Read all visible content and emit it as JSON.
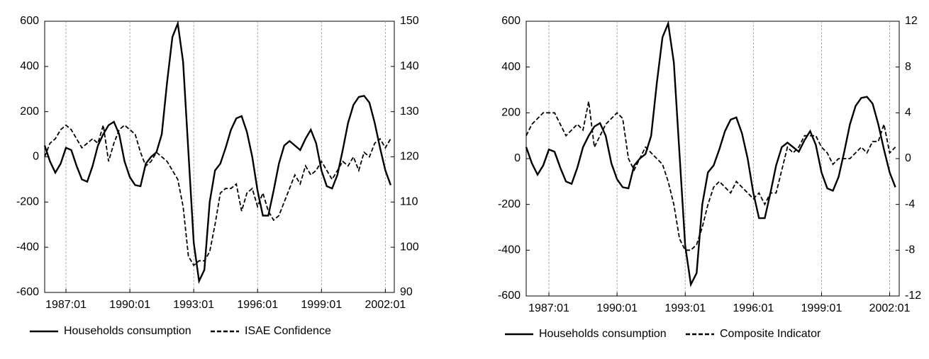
{
  "chart_data": [
    {
      "type": "line",
      "grid": "x",
      "x": [
        1986,
        1986.25,
        1986.5,
        1986.75,
        1987,
        1987.25,
        1987.5,
        1987.75,
        1988,
        1988.25,
        1988.5,
        1988.75,
        1989,
        1989.25,
        1989.5,
        1989.75,
        1990,
        1990.25,
        1990.5,
        1990.75,
        1991,
        1991.25,
        1991.5,
        1991.75,
        1992,
        1992.25,
        1992.5,
        1992.75,
        1993,
        1993.25,
        1993.5,
        1993.75,
        1994,
        1994.25,
        1994.5,
        1994.75,
        1995,
        1995.25,
        1995.5,
        1995.75,
        1996,
        1996.25,
        1996.5,
        1996.75,
        1997,
        1997.25,
        1997.5,
        1997.75,
        1998,
        1998.25,
        1998.5,
        1998.75,
        1999,
        1999.25,
        1999.5,
        1999.75,
        2000,
        2000.25,
        2000.5,
        2000.75,
        2001,
        2001.25,
        2001.5,
        2001.75,
        2002,
        2002.25
      ],
      "xlim": [
        1986,
        2002.42
      ],
      "xticks": [
        {
          "value": 1987,
          "label": "1987:01"
        },
        {
          "value": 1990,
          "label": "1990:01"
        },
        {
          "value": 1993,
          "label": "1993:01"
        },
        {
          "value": 1996,
          "label": "1996:01"
        },
        {
          "value": 1999,
          "label": "1999:01"
        },
        {
          "value": 2002,
          "label": "2002:01"
        }
      ],
      "ylim": [
        -600,
        600
      ],
      "yticks": [
        -600,
        -400,
        -200,
        0,
        200,
        400,
        600
      ],
      "y2lim": [
        90,
        150
      ],
      "y2ticks": [
        90,
        100,
        110,
        120,
        130,
        140,
        150
      ],
      "series": [
        {
          "name": "Households consumption",
          "color": "#000000",
          "dash": false,
          "values": [
            50,
            -20,
            -70,
            -30,
            40,
            30,
            -40,
            -100,
            -110,
            -40,
            50,
            100,
            140,
            155,
            100,
            -20,
            -90,
            -125,
            -130,
            -30,
            0,
            20,
            100,
            330,
            530,
            590,
            420,
            20,
            -380,
            -550,
            -500,
            -200,
            -60,
            -30,
            40,
            120,
            170,
            180,
            110,
            0,
            -150,
            -260,
            -260,
            -150,
            -30,
            50,
            70,
            50,
            30,
            80,
            120,
            60,
            -60,
            -130,
            -140,
            -80,
            30,
            150,
            230,
            265,
            270,
            240,
            150,
            40,
            -60,
            -125
          ]
        },
        {
          "name": "ISAE Confidence",
          "color": "#000000",
          "dash": true,
          "axis": "y2",
          "values": [
            120,
            123,
            124,
            126,
            127,
            126,
            124,
            122,
            123,
            124,
            123,
            127,
            119,
            123,
            126,
            127,
            126,
            125,
            121,
            118,
            119,
            121,
            120,
            119,
            117,
            115,
            109,
            98,
            96,
            97,
            97,
            99,
            105,
            112,
            113,
            113,
            114,
            108,
            112,
            113,
            109,
            112,
            108,
            106,
            107,
            110,
            113,
            116,
            114,
            118,
            116,
            117,
            119,
            117,
            115,
            117,
            119,
            118,
            120,
            117,
            121,
            120,
            123,
            124,
            122,
            124
          ]
        }
      ]
    },
    {
      "type": "line",
      "grid": "x",
      "x": [
        1986,
        1986.25,
        1986.5,
        1986.75,
        1987,
        1987.25,
        1987.5,
        1987.75,
        1988,
        1988.25,
        1988.5,
        1988.75,
        1989,
        1989.25,
        1989.5,
        1989.75,
        1990,
        1990.25,
        1990.5,
        1990.75,
        1991,
        1991.25,
        1991.5,
        1991.75,
        1992,
        1992.25,
        1992.5,
        1992.75,
        1993,
        1993.25,
        1993.5,
        1993.75,
        1994,
        1994.25,
        1994.5,
        1994.75,
        1995,
        1995.25,
        1995.5,
        1995.75,
        1996,
        1996.25,
        1996.5,
        1996.75,
        1997,
        1997.25,
        1997.5,
        1997.75,
        1998,
        1998.25,
        1998.5,
        1998.75,
        1999,
        1999.25,
        1999.5,
        1999.75,
        2000,
        2000.25,
        2000.5,
        2000.75,
        2001,
        2001.25,
        2001.5,
        2001.75,
        2002,
        2002.25
      ],
      "xlim": [
        1986,
        2002.42
      ],
      "xticks": [
        {
          "value": 1987,
          "label": "1987:01"
        },
        {
          "value": 1990,
          "label": "1990:01"
        },
        {
          "value": 1993,
          "label": "1993:01"
        },
        {
          "value": 1996,
          "label": "1996:01"
        },
        {
          "value": 1999,
          "label": "1999:01"
        },
        {
          "value": 2002,
          "label": "2002:01"
        }
      ],
      "ylim": [
        -600,
        600
      ],
      "yticks": [
        -600,
        -400,
        -200,
        0,
        200,
        400,
        600
      ],
      "y2lim": [
        -12,
        12
      ],
      "y2ticks": [
        -12,
        -8,
        -4,
        0,
        4,
        8,
        12
      ],
      "series": [
        {
          "name": "Households consumption",
          "color": "#000000",
          "dash": false,
          "values": [
            50,
            -20,
            -70,
            -30,
            40,
            30,
            -40,
            -100,
            -110,
            -40,
            50,
            100,
            140,
            155,
            100,
            -20,
            -90,
            -125,
            -130,
            -30,
            0,
            20,
            100,
            330,
            530,
            590,
            420,
            20,
            -380,
            -550,
            -500,
            -200,
            -60,
            -30,
            40,
            120,
            170,
            180,
            110,
            0,
            -150,
            -260,
            -260,
            -150,
            -30,
            50,
            70,
            50,
            30,
            80,
            120,
            60,
            -60,
            -130,
            -140,
            -80,
            30,
            150,
            230,
            265,
            270,
            240,
            150,
            40,
            -60,
            -125
          ]
        },
        {
          "name": "Composite Indicator",
          "color": "#000000",
          "dash": true,
          "axis": "y2",
          "values": [
            2,
            3,
            3.5,
            4,
            4,
            4,
            3,
            2,
            2.5,
            3,
            2.5,
            5,
            1,
            2,
            3,
            3.5,
            4,
            3.5,
            0,
            -1,
            0,
            1,
            0.5,
            0,
            -0.5,
            -2,
            -4,
            -7,
            -8,
            -8,
            -7.5,
            -6,
            -4,
            -2.5,
            -2,
            -2.5,
            -3,
            -2,
            -2.5,
            -3,
            -3.5,
            -3,
            -4,
            -3,
            -3,
            -1,
            1,
            0.5,
            1,
            2,
            2,
            2,
            1,
            0.5,
            -0.5,
            0,
            0,
            0,
            0.5,
            1,
            0.5,
            1.5,
            1.5,
            3,
            0.5,
            1
          ]
        }
      ]
    }
  ]
}
